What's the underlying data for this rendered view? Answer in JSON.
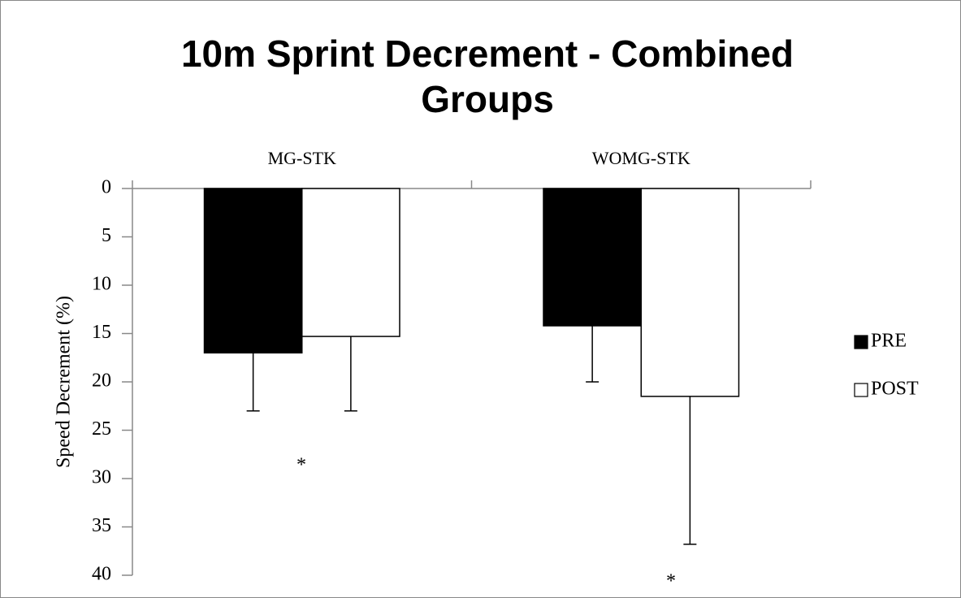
{
  "chart_data": {
    "type": "bar",
    "title": "10m Sprint Decrement - Combined Groups",
    "categories": [
      "MG-STK",
      "WOMG-STK"
    ],
    "series": [
      {
        "name": "PRE",
        "color": "#000000",
        "values": [
          17,
          14.2
        ],
        "errors": [
          6,
          5.8
        ]
      },
      {
        "name": "POST",
        "color": "#ffffff",
        "values": [
          15.3,
          21.5
        ],
        "errors": [
          7.7,
          15.3
        ]
      }
    ],
    "ylabel": "Speed Decrement (%)",
    "ylim": [
      0,
      40
    ],
    "yticks": [
      0,
      5,
      10,
      15,
      20,
      25,
      30,
      35,
      40
    ],
    "y_inverted": true,
    "legend": "right",
    "annotations": [
      "*",
      "*"
    ]
  }
}
